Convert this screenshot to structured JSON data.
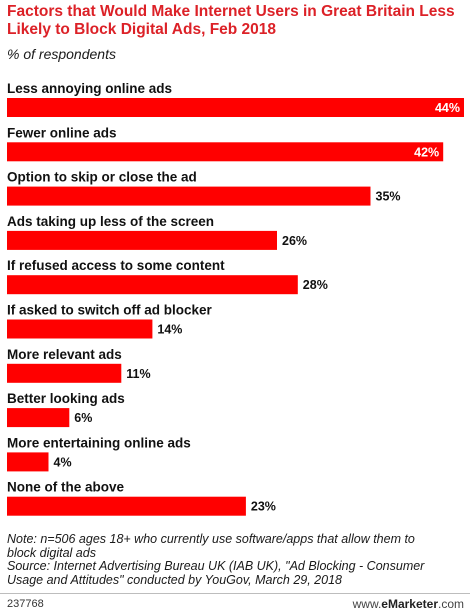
{
  "chart_data": {
    "type": "bar",
    "title": "Factors that Would Make Internet Users in Great Britain Less Likely to Block Digital Ads, Feb 2018",
    "subtitle": "% of respondents",
    "categories": [
      "Less annoying online ads",
      "Fewer online ads",
      "Option to skip or close the ad",
      "Ads taking up less of the screen",
      "If refused access to some content",
      "If asked to switch off ad blocker",
      "More relevant ads",
      "Better looking ads",
      "More entertaining online ads",
      "None of the above"
    ],
    "values": [
      44,
      42,
      35,
      26,
      28,
      14,
      11,
      6,
      4,
      23
    ],
    "value_labels": [
      "44%",
      "42%",
      "35%",
      "26%",
      "28%",
      "14%",
      "11%",
      "6%",
      "4%",
      "23%"
    ],
    "xlim": [
      0,
      44
    ],
    "orientation": "horizontal",
    "grid": false,
    "bar_color": "#ff0000"
  },
  "notes": {
    "lines": [
      "Note: n=506 ages 18+ who currently use software/apps that allow them to",
      "block digital ads",
      "Source: Internet Advertising Bureau UK (IAB UK), \"Ad Blocking - Consumer",
      "Usage and Attitudes\" conducted by YouGov, March 29, 2018"
    ]
  },
  "footer": {
    "id": "237768",
    "brand_prefix": "www.",
    "brand_name": "eMarketer",
    "brand_suffix": ".com"
  },
  "colors": {
    "title": "#dc2127",
    "bar": "#ff0000"
  }
}
